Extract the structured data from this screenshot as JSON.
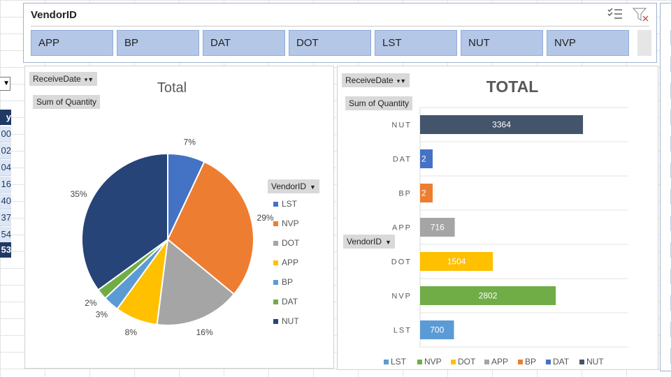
{
  "slicer": {
    "title": "VendorID",
    "buttons": [
      "APP",
      "BP",
      "DAT",
      "DOT",
      "LST",
      "NUT",
      "NVP"
    ]
  },
  "sheet": {
    "header": "y",
    "rows": [
      "00",
      "02",
      "04",
      "16",
      "40",
      "37",
      "54"
    ],
    "total": "53"
  },
  "colors": {
    "LST": "#4472c4",
    "NVP": "#ed7d31",
    "DOT": "#a5a5a5",
    "APP": "#ffc000",
    "BP": "#5b9bd5",
    "DAT": "#70ad47",
    "NUT": "#264478"
  },
  "pie_panel": {
    "filter_label": "ReceiveDate",
    "value_label": "Sum of Quantity",
    "legend_field_label": "VendorID"
  },
  "bar_panel": {
    "filter_label": "ReceiveDate",
    "value_label": "Sum of Quantity",
    "axis_field_label": "VendorID"
  },
  "chart_data": [
    {
      "type": "pie",
      "title": "Total",
      "categories": [
        "LST",
        "NVP",
        "DOT",
        "APP",
        "BP",
        "DAT",
        "NUT"
      ],
      "values": [
        7,
        29,
        16,
        8,
        3,
        2,
        35
      ],
      "data_labels": [
        "7%",
        "29%",
        "16%",
        "8%",
        "3%",
        "2%",
        "35%"
      ],
      "legend_position": "right"
    },
    {
      "type": "bar",
      "orientation": "horizontal",
      "title": "TOTAL",
      "categories": [
        "NUT",
        "DAT",
        "BP",
        "APP",
        "DOT",
        "NVP",
        "LST"
      ],
      "values": [
        3364,
        2,
        2,
        716,
        1504,
        2802,
        700
      ],
      "bar_colors": [
        "#44546a",
        "#4472c4",
        "#ed7d31",
        "#a5a5a5",
        "#ffc000",
        "#70ad47",
        "#5b9bd5"
      ],
      "legend": [
        "LST",
        "NVP",
        "DOT",
        "APP",
        "BP",
        "DAT",
        "NUT"
      ],
      "legend_colors": [
        "#5b9bd5",
        "#70ad47",
        "#ffc000",
        "#a5a5a5",
        "#ed7d31",
        "#4472c4",
        "#44546a"
      ],
      "legend_position": "bottom",
      "grid": true
    }
  ]
}
